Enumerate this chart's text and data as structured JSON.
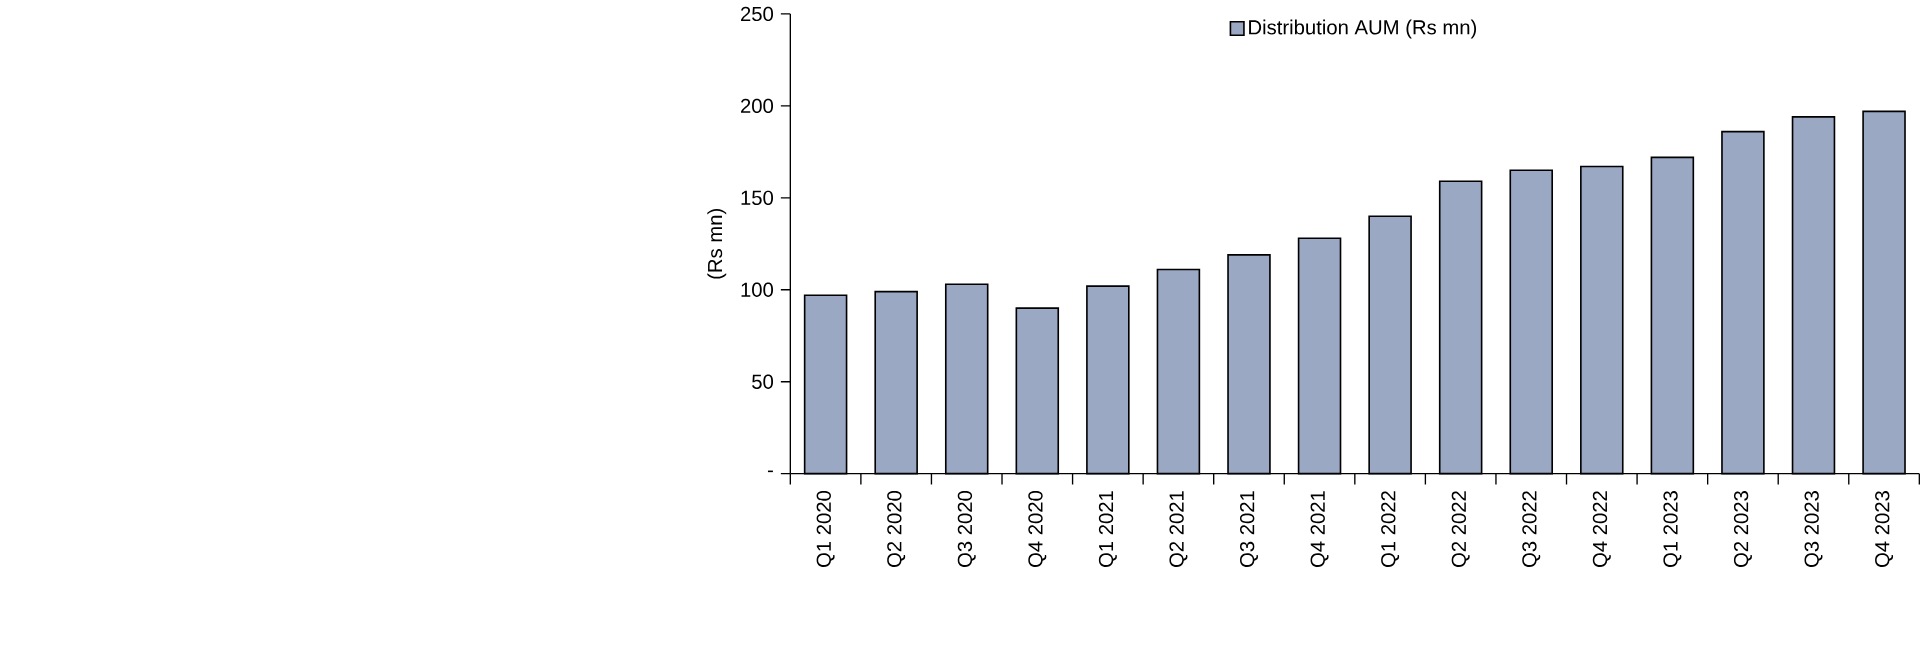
{
  "chart_data": {
    "type": "bar",
    "ylabel": "(Rs mn)",
    "categories": [
      "Q1 2020",
      "Q2 2020",
      "Q3 2020",
      "Q4 2020",
      "Q1 2021",
      "Q2 2021",
      "Q3 2021",
      "Q4 2021",
      "Q1 2022",
      "Q2 2022",
      "Q3 2022",
      "Q4 2022",
      "Q1 2023",
      "Q2 2023",
      "Q3 2023",
      "Q4 2023"
    ],
    "series": [
      {
        "name": "Distribution AUM  (Rs mn)",
        "color": "#9aa8c4",
        "values": [
          97,
          99,
          103,
          90,
          102,
          111,
          119,
          128,
          140,
          159,
          165,
          167,
          172,
          186,
          194,
          197
        ]
      }
    ],
    "ylim": [
      0,
      250
    ],
    "yticks": [
      {
        "value": 0,
        "label": "-"
      },
      50,
      100,
      150,
      200,
      250
    ],
    "grid": false,
    "legend": "top"
  }
}
